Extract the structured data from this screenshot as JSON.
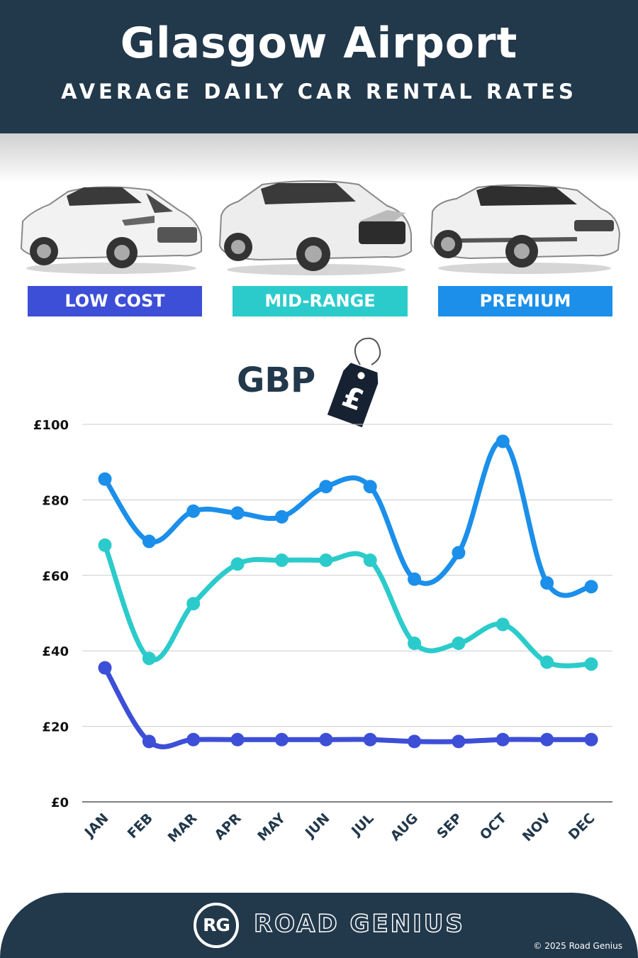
{
  "header": {
    "title": "Glasgow Airport",
    "subtitle": "AVERAGE DAILY CAR RENTAL RATES"
  },
  "categories": [
    {
      "label": "LOW COST",
      "color": "#3d4fd6",
      "car_icon": "hatchback-car-icon"
    },
    {
      "label": "MID-RANGE",
      "color": "#2ccbcb",
      "car_icon": "suv-car-icon"
    },
    {
      "label": "PREMIUM",
      "color": "#1b8fe9",
      "car_icon": "luxury-suv-car-icon"
    }
  ],
  "currency": {
    "label": "GBP",
    "tag_symbol": "£",
    "tag_icon": "price-tag-icon"
  },
  "chart_data": {
    "type": "line",
    "categories": [
      "JAN",
      "FEB",
      "MAR",
      "APR",
      "MAY",
      "JUN",
      "JUL",
      "AUG",
      "SEP",
      "OCT",
      "NOV",
      "DEC"
    ],
    "yticks": [
      "£0",
      "£20",
      "£40",
      "£60",
      "£80",
      "£100"
    ],
    "ylim": [
      0,
      100
    ],
    "grid": true,
    "series": [
      {
        "name": "PREMIUM",
        "color": "#1b8fe9",
        "values": [
          85.5,
          69,
          77,
          76.5,
          75.5,
          83.5,
          83.5,
          59,
          66,
          95.5,
          58,
          57
        ]
      },
      {
        "name": "MID-RANGE",
        "color": "#2ccbcb",
        "values": [
          68,
          38,
          52.5,
          63,
          64,
          64,
          64,
          42,
          42,
          47,
          37,
          36.5
        ]
      },
      {
        "name": "LOW COST",
        "color": "#3d4fd6",
        "values": [
          35.5,
          16,
          16.5,
          16.5,
          16.5,
          16.5,
          16.5,
          16,
          16,
          16.5,
          16.5,
          16.5
        ]
      }
    ]
  },
  "footer": {
    "logo_mark": "RG",
    "brand": "ROAD GENIUS",
    "copyright": "© 2025 Road Genius"
  }
}
